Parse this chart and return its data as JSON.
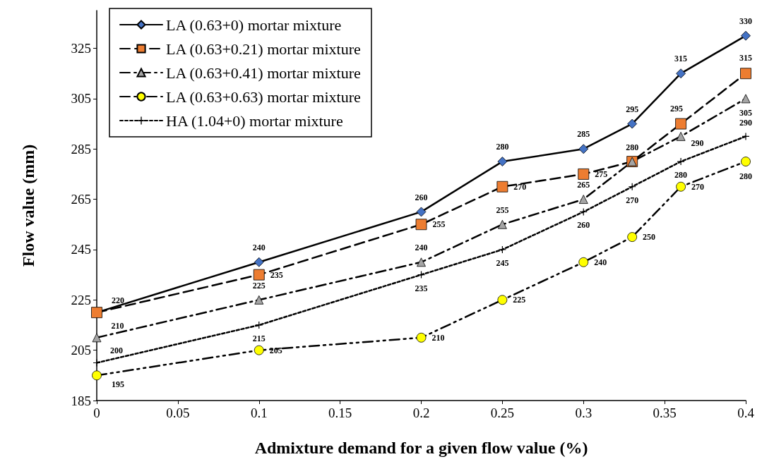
{
  "chart_data": {
    "type": "line",
    "xlabel": "Admixture demand for a given flow value (%)",
    "ylabel": "Flow value (mm)",
    "x": [
      0,
      0.1,
      0.2,
      0.25,
      0.3,
      0.33,
      0.36,
      0.4
    ],
    "series": [
      {
        "name": "LA (0.63+0) mortar mixture",
        "color": "#4472c4",
        "marker": "diamond",
        "line_style": "solid",
        "values": [
          220,
          240,
          260,
          280,
          285,
          295,
          315,
          330
        ],
        "value_labels": [
          "220",
          "240",
          "260",
          "280",
          "285",
          "295",
          "315",
          "330"
        ]
      },
      {
        "name": "LA (0.63+0.21) mortar mixture",
        "color": "#ed7d31",
        "marker": "square",
        "line_style": "dashed",
        "values": [
          220,
          235,
          255,
          270,
          275,
          280,
          295,
          315
        ],
        "value_labels": [
          null,
          "235",
          "255",
          "270",
          "275",
          null,
          "295",
          "315"
        ]
      },
      {
        "name": "LA (0.63+0.41) mortar mixture",
        "color": "#a5a5a5",
        "marker": "triangle",
        "line_style": "dashed",
        "values": [
          210,
          225,
          240,
          255,
          265,
          280,
          290,
          305
        ],
        "value_labels": [
          "210",
          "225",
          "240",
          "255",
          "265",
          "280",
          "290",
          "305"
        ]
      },
      {
        "name": "LA (0.63+0.63) mortar mixture",
        "color": "#ffff00",
        "marker": "circle",
        "line_style": "dashed",
        "values": [
          195,
          205,
          210,
          225,
          240,
          250,
          270,
          280
        ],
        "value_labels": [
          "195",
          "205",
          "210",
          "225",
          "240",
          "250",
          "270",
          "280"
        ]
      },
      {
        "name": "HA (1.04+0) mortar mixture",
        "color": "#000000",
        "marker": "cross",
        "line_style": "dotted",
        "values": [
          200,
          215,
          235,
          245,
          260,
          270,
          280,
          290
        ],
        "value_labels": [
          "200",
          "215",
          "235",
          "245",
          "260",
          "270",
          "280",
          "290"
        ]
      }
    ],
    "xlim": [
      0,
      0.4
    ],
    "xticks": [
      0,
      0.05,
      0.1,
      0.15,
      0.2,
      0.25,
      0.3,
      0.35,
      0.4
    ],
    "ylim": [
      185,
      340
    ],
    "yticks": [
      185,
      205,
      225,
      245,
      265,
      285,
      305,
      325
    ],
    "grid": false,
    "legend": "top left"
  }
}
